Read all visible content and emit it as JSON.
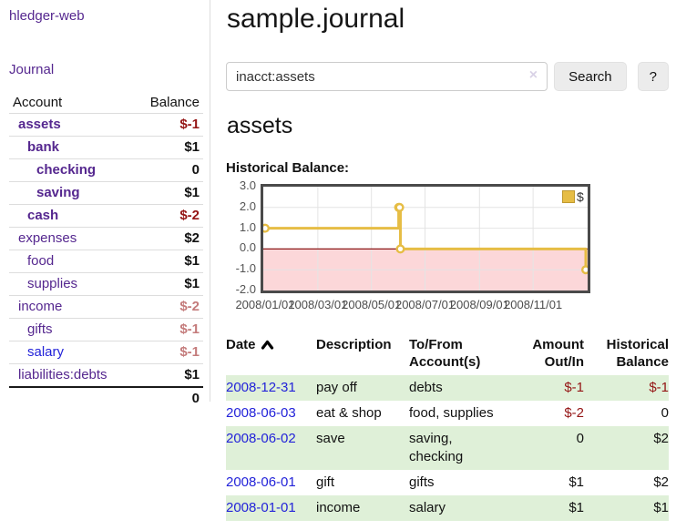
{
  "app": {
    "brand": "hledger-web"
  },
  "colors": {
    "link_purple": "#55278f",
    "link_blue": "#2323d9",
    "negative_strong": "#941414",
    "negative_soft": "#c47b7b",
    "row_stripe_green": "#dff0d8",
    "button_gray": "#ececec",
    "chart_line_yellow": "#e6bd45",
    "chart_negative_region_pink": "#fcd7d9",
    "chart_zero_line_red": "#8c1717"
  },
  "sidebar": {
    "journal_link": "Journal",
    "table": {
      "account_header": "Account",
      "balance_header": "Balance",
      "rows": [
        {
          "name": "assets",
          "level": 0,
          "bold": true,
          "link": "purple",
          "balance": "$-1",
          "balance_class": "neg-strong"
        },
        {
          "name": "bank",
          "level": 1,
          "bold": true,
          "link": "purple",
          "balance": "$1",
          "balance_class": ""
        },
        {
          "name": "checking",
          "level": 2,
          "bold": true,
          "link": "purple",
          "balance": "0",
          "balance_class": ""
        },
        {
          "name": "saving",
          "level": 2,
          "bold": true,
          "link": "purple",
          "balance": "$1",
          "balance_class": ""
        },
        {
          "name": "cash",
          "level": 1,
          "bold": true,
          "link": "purple",
          "balance": "$-2",
          "balance_class": "neg-strong"
        },
        {
          "name": "expenses",
          "level": 0,
          "bold": false,
          "link": "purple",
          "balance": "$2",
          "balance_class": ""
        },
        {
          "name": "food",
          "level": 1,
          "bold": false,
          "link": "purple",
          "balance": "$1",
          "balance_class": ""
        },
        {
          "name": "supplies",
          "level": 1,
          "bold": false,
          "link": "purple",
          "balance": "$1",
          "balance_class": ""
        },
        {
          "name": "income",
          "level": 0,
          "bold": false,
          "link": "purple",
          "balance": "$-2",
          "balance_class": "neg-soft"
        },
        {
          "name": "gifts",
          "level": 1,
          "bold": false,
          "link": "purple",
          "balance": "$-1",
          "balance_class": "neg-soft"
        },
        {
          "name": "salary",
          "level": 1,
          "bold": false,
          "link": "blue",
          "balance": "$-1",
          "balance_class": "neg-soft"
        },
        {
          "name": "liabilities:debts",
          "level": 0,
          "bold": false,
          "link": "purple",
          "balance": "$1",
          "balance_class": ""
        }
      ],
      "total": "0"
    }
  },
  "main": {
    "title": "sample.journal",
    "search": {
      "value": "inacct:assets",
      "clear_label": "×",
      "search_button": "Search",
      "help_button": "?"
    },
    "account_heading": "assets",
    "chart_label": "Historical Balance:",
    "register": {
      "headers": {
        "date": "Date",
        "description": "Description",
        "tofrom": "To/From Account(s)",
        "amount": "Amount Out/In",
        "balance": "Historical Balance"
      },
      "rows": [
        {
          "date": "2008-12-31",
          "description": "pay off",
          "accounts": "debts",
          "amount": "$-1",
          "amount_class": "neg-strong",
          "balance": "$-1",
          "balance_class": "neg-strong"
        },
        {
          "date": "2008-06-03",
          "description": "eat & shop",
          "accounts": "food, supplies",
          "amount": "$-2",
          "amount_class": "neg-strong",
          "balance": "0",
          "balance_class": ""
        },
        {
          "date": "2008-06-02",
          "description": "save",
          "accounts": "saving, checking",
          "amount": "0",
          "amount_class": "",
          "balance": "$2",
          "balance_class": ""
        },
        {
          "date": "2008-06-01",
          "description": "gift",
          "accounts": "gifts",
          "amount": "$1",
          "amount_class": "",
          "balance": "$2",
          "balance_class": ""
        },
        {
          "date": "2008-01-01",
          "description": "income",
          "accounts": "salary",
          "amount": "$1",
          "amount_class": "",
          "balance": "$1",
          "balance_class": ""
        }
      ]
    }
  },
  "chart_data": {
    "type": "line",
    "title": "Historical Balance",
    "step": true,
    "series": [
      {
        "name": "$",
        "color": "#e6bd45",
        "points": [
          [
            "2008-01-01",
            1
          ],
          [
            "2008-06-01",
            2
          ],
          [
            "2008-06-02",
            2
          ],
          [
            "2008-06-03",
            0
          ],
          [
            "2008-12-31",
            -1
          ]
        ]
      }
    ],
    "xlim": [
      "2008/01/01",
      "2008/12/31"
    ],
    "ylim": [
      -2,
      3
    ],
    "xticks": [
      "2008/01/01",
      "2008/03/01",
      "2008/05/01",
      "2008/07/01",
      "2008/09/01",
      "2008/11/01"
    ],
    "yticks": [
      "3.0",
      "2.0",
      "1.0",
      "0.0",
      "-1.0",
      "-2.0"
    ],
    "legend": {
      "label": "$",
      "position": "top-right"
    },
    "grid": true,
    "grid_color": "#e4e4e4",
    "negative_region_color": "#fcd7d9",
    "zero_line_color": "#8c1717",
    "axis_label_color": "#545454"
  }
}
